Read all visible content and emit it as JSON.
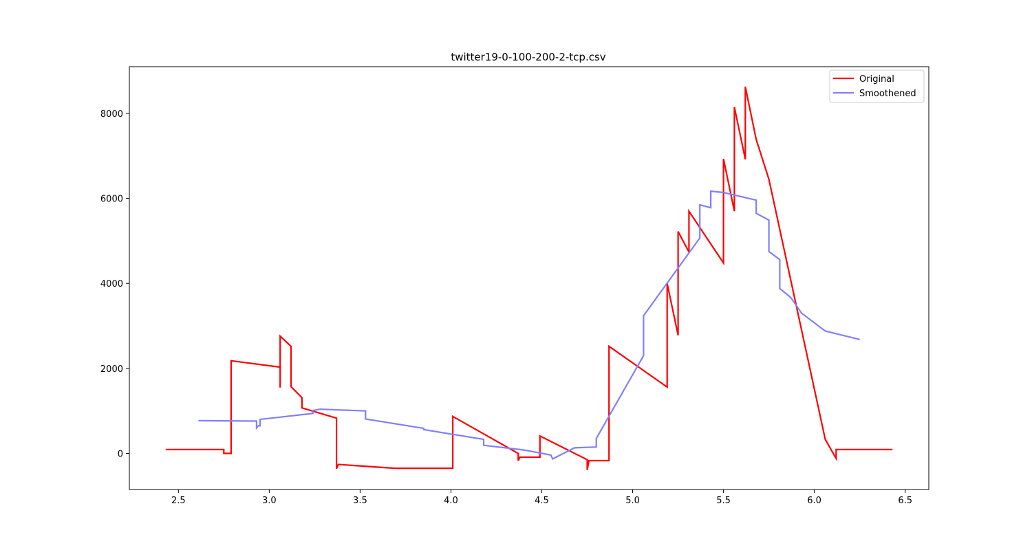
{
  "chart_data": {
    "type": "line",
    "title": "twitter19-0-100-200-2-tcp.csv",
    "xlabel": "",
    "ylabel": "",
    "xlim": [
      2.23,
      6.63
    ],
    "ylim": [
      -850,
      9100
    ],
    "xticks": [
      2.5,
      3.0,
      3.5,
      4.0,
      4.5,
      5.0,
      5.5,
      6.0,
      6.5
    ],
    "xtick_labels": [
      "2.5",
      "3.0",
      "3.5",
      "4.0",
      "4.5",
      "5.0",
      "5.5",
      "6.0",
      "6.5"
    ],
    "yticks": [
      0,
      2000,
      4000,
      6000,
      8000
    ],
    "ytick_labels": [
      "0",
      "2000",
      "4000",
      "6000",
      "8000"
    ],
    "grid": false,
    "legend": {
      "position": "upper right"
    },
    "series": [
      {
        "name": "Original",
        "color": "#ff0000",
        "points": [
          [
            2.43,
            90
          ],
          [
            2.75,
            90
          ],
          [
            2.75,
            0
          ],
          [
            2.79,
            0
          ],
          [
            2.79,
            2180
          ],
          [
            3.06,
            2030
          ],
          [
            3.06,
            1550
          ],
          [
            3.06,
            2760
          ],
          [
            3.12,
            2520
          ],
          [
            3.12,
            1570
          ],
          [
            3.18,
            1310
          ],
          [
            3.18,
            1070
          ],
          [
            3.37,
            830
          ],
          [
            3.37,
            -360
          ],
          [
            3.38,
            -260
          ],
          [
            3.69,
            -350
          ],
          [
            4.01,
            -350
          ],
          [
            4.01,
            870
          ],
          [
            4.37,
            0
          ],
          [
            4.37,
            -170
          ],
          [
            4.38,
            -90
          ],
          [
            4.49,
            -90
          ],
          [
            4.49,
            410
          ],
          [
            4.75,
            -150
          ],
          [
            4.75,
            -390
          ],
          [
            4.76,
            -170
          ],
          [
            4.87,
            -170
          ],
          [
            4.87,
            2520
          ],
          [
            5.19,
            1560
          ],
          [
            5.19,
            4000
          ],
          [
            5.25,
            2780
          ],
          [
            5.25,
            5220
          ],
          [
            5.31,
            4740
          ],
          [
            5.31,
            5700
          ],
          [
            5.5,
            4480
          ],
          [
            5.5,
            6930
          ],
          [
            5.56,
            5700
          ],
          [
            5.56,
            8150
          ],
          [
            5.62,
            6920
          ],
          [
            5.62,
            8630
          ],
          [
            5.68,
            7390
          ],
          [
            5.75,
            6450
          ],
          [
            6.06,
            330
          ],
          [
            6.12,
            -120
          ],
          [
            6.12,
            90
          ],
          [
            6.43,
            90
          ]
        ]
      },
      {
        "name": "Smoothened",
        "color": "#7f7fff",
        "points": [
          [
            2.61,
            770
          ],
          [
            2.93,
            760
          ],
          [
            2.93,
            600
          ],
          [
            2.94,
            650
          ],
          [
            2.95,
            650
          ],
          [
            2.95,
            800
          ],
          [
            3.24,
            940
          ],
          [
            3.24,
            1010
          ],
          [
            3.28,
            1040
          ],
          [
            3.53,
            1000
          ],
          [
            3.53,
            810
          ],
          [
            3.85,
            590
          ],
          [
            3.85,
            560
          ],
          [
            4.18,
            330
          ],
          [
            4.18,
            190
          ],
          [
            4.4,
            80
          ],
          [
            4.55,
            -40
          ],
          [
            4.56,
            -130
          ],
          [
            4.68,
            130
          ],
          [
            4.8,
            150
          ],
          [
            4.8,
            350
          ],
          [
            5.06,
            2300
          ],
          [
            5.06,
            3240
          ],
          [
            5.37,
            5070
          ],
          [
            5.37,
            5850
          ],
          [
            5.43,
            5780
          ],
          [
            5.43,
            6170
          ],
          [
            5.5,
            6140
          ],
          [
            5.68,
            5960
          ],
          [
            5.68,
            5650
          ],
          [
            5.75,
            5490
          ],
          [
            5.75,
            4750
          ],
          [
            5.81,
            4560
          ],
          [
            5.81,
            3880
          ],
          [
            5.87,
            3670
          ],
          [
            5.93,
            3300
          ],
          [
            6.06,
            2880
          ],
          [
            6.25,
            2680
          ]
        ]
      }
    ]
  }
}
